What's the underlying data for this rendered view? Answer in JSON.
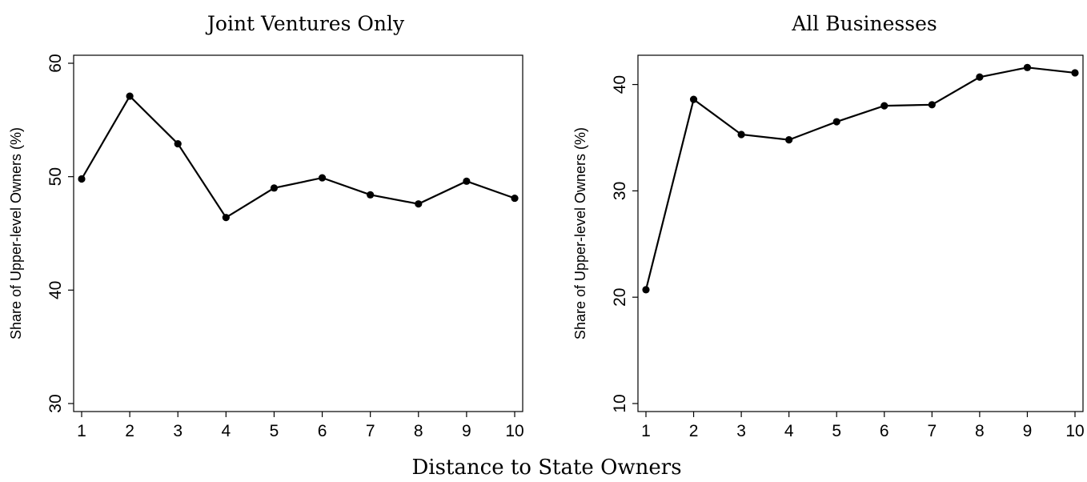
{
  "chart_data": [
    {
      "type": "line",
      "title": "Joint Ventures Only",
      "xlabel": "",
      "ylabel": "Share of Upper-level Owners (%)",
      "x": [
        1,
        2,
        3,
        4,
        5,
        6,
        7,
        8,
        9,
        10
      ],
      "series": [
        {
          "values": [
            49.8,
            57.1,
            52.9,
            46.4,
            49.0,
            49.9,
            48.4,
            47.6,
            49.6,
            48.1
          ]
        }
      ],
      "xlim": [
        1,
        10
      ],
      "ylim": [
        30,
        60
      ],
      "xticks": [
        1,
        2,
        3,
        4,
        5,
        6,
        7,
        8,
        9,
        10
      ],
      "yticks": [
        30,
        40,
        50,
        60
      ],
      "grid": false
    },
    {
      "type": "line",
      "title": "All Businesses",
      "xlabel": "",
      "ylabel": "Share of Upper-level Owners (%)",
      "x": [
        1,
        2,
        3,
        4,
        5,
        6,
        7,
        8,
        9,
        10
      ],
      "series": [
        {
          "values": [
            20.7,
            38.6,
            35.3,
            34.8,
            36.5,
            38.0,
            38.1,
            40.7,
            41.6,
            41.1
          ]
        }
      ],
      "xlim": [
        1,
        10
      ],
      "ylim": [
        10,
        42
      ],
      "xticks": [
        1,
        2,
        3,
        4,
        5,
        6,
        7,
        8,
        9,
        10
      ],
      "yticks": [
        10,
        20,
        30,
        40
      ],
      "grid": false
    }
  ],
  "shared_xlabel": "Distance to State Owners",
  "colors": {
    "line": "#000000",
    "marker": "#000000",
    "axis": "#000000"
  }
}
